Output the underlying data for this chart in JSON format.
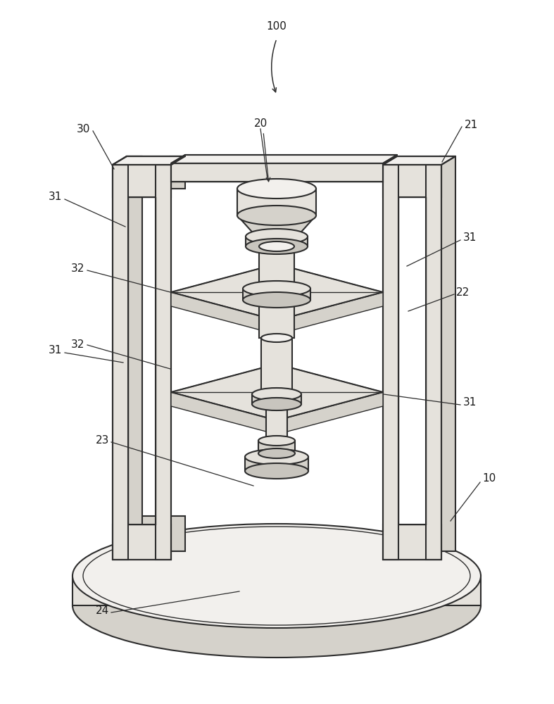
{
  "bg_color": "#ffffff",
  "line_color": "#2d2d2d",
  "face_light": "#f2f0ed",
  "face_mid": "#e5e2dc",
  "face_dark": "#d5d2cb",
  "face_darker": "#c8c5be",
  "figsize": [
    7.87,
    10.0
  ],
  "dpi": 100,
  "label_fs": 11,
  "label_color": "#1a1a1a"
}
